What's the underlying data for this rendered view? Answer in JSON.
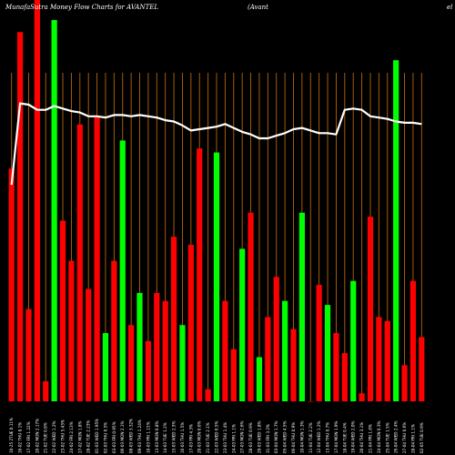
{
  "title": {
    "left": "MunafaSutra  Money Flow  Charts for AVANTEL",
    "middle": "(Avant",
    "right": "el"
  },
  "chart_data": {
    "type": "bar",
    "categories": [
      "10-25 2TUE 0.11%",
      "16-02 THU 8.1%",
      "17-02 FRI 1.22%",
      "20-02 MON 2.17%",
      "21-02 TUE 0.8%",
      "22-02 WED 1.2%",
      "23-02 THU 5.43%",
      "24-02 FRI 2.13%",
      "27-02 MON 1.8%",
      "28-02 TUE 2.23%",
      "01-03 WED 1.95%",
      "02-03 THU 0.5%",
      "03-03 FRI 0.95%",
      "06-03 MON 2.1%",
      "08-03 WED 3.32%",
      "09-03 THU 1.24%",
      "10-03 FRI 1.15%",
      "13-03 MON 0.8%",
      "14-03 TUE 1.2%",
      "15-03 WED 2.5%",
      "16-03 THU 1.5%",
      "17-03 FRI 4.3%",
      "20-03 MON 0.6%",
      "21-03 TUE 2.1%",
      "22-03 WED 0.5%",
      "23-03 THU 1.4%",
      "24-03 FRI 1.1%",
      "27-03 MON 2.6%",
      "28-03 TUE 0.9%",
      "29-03 WED 1.8%",
      "31-03 FRI 3.2%",
      "03-04 MON 1.7%",
      "05-04 WED 4.5%",
      "06-04 THU 0.9%",
      "10-04 MON 1.3%",
      "11-04 TUE 2.2%",
      "12-04 WED 1.2%",
      "13-04 THU 0.7%",
      "17-04 MON 1.9%",
      "18-04 TUE 0.4%",
      "19-04 WED 2.0%",
      "20-04 THU 3.1%",
      "21-04 FRI 1.0%",
      "24-04 MON 0.3%",
      "25-04 TUE 1.5%",
      "26-04 WED 2.4%",
      "27-04 THU 0.6%",
      "28-04 FRI 1.1%",
      "02-05 TUE 0.9%"
    ],
    "colors": [
      "red",
      "red",
      "red",
      "red",
      "red",
      "green",
      "red",
      "red",
      "red",
      "red",
      "red",
      "green",
      "red",
      "green",
      "red",
      "green",
      "red",
      "red",
      "red",
      "red",
      "green",
      "red",
      "red",
      "red",
      "green",
      "red",
      "red",
      "green",
      "red",
      "green",
      "red",
      "red",
      "green",
      "red",
      "green",
      "red",
      "red",
      "green",
      "red",
      "red",
      "green",
      "red",
      "red",
      "red",
      "red",
      "green",
      "red",
      "red",
      "red"
    ],
    "values": [
      58,
      92,
      23,
      100,
      5,
      95,
      45,
      35,
      69,
      28,
      71,
      17,
      35,
      65,
      19,
      27,
      15,
      27,
      25,
      41,
      19,
      39,
      63,
      3,
      62,
      25,
      13,
      38,
      47,
      11,
      21,
      31,
      25,
      18,
      47,
      0,
      29,
      24,
      17,
      12,
      30,
      2,
      46,
      21,
      20,
      85,
      9,
      30,
      16
    ],
    "line": [
      26,
      89,
      88,
      84,
      84,
      87,
      85,
      83,
      82,
      79,
      79,
      78,
      80,
      80,
      79,
      80,
      79,
      78,
      76,
      75,
      72,
      68,
      69,
      70,
      71,
      73,
      70,
      67,
      65,
      62,
      62,
      64,
      66,
      69,
      70,
      68,
      66,
      66,
      65,
      84,
      85,
      84,
      79,
      78,
      77,
      75,
      74,
      74,
      73
    ],
    "ylim": [
      0,
      100
    ]
  },
  "colors": {
    "background": "#000000",
    "up": "#00ff00",
    "down": "#ff0000",
    "grid": "#b8650c",
    "line": "#ffffff",
    "text": "#ffffff"
  }
}
